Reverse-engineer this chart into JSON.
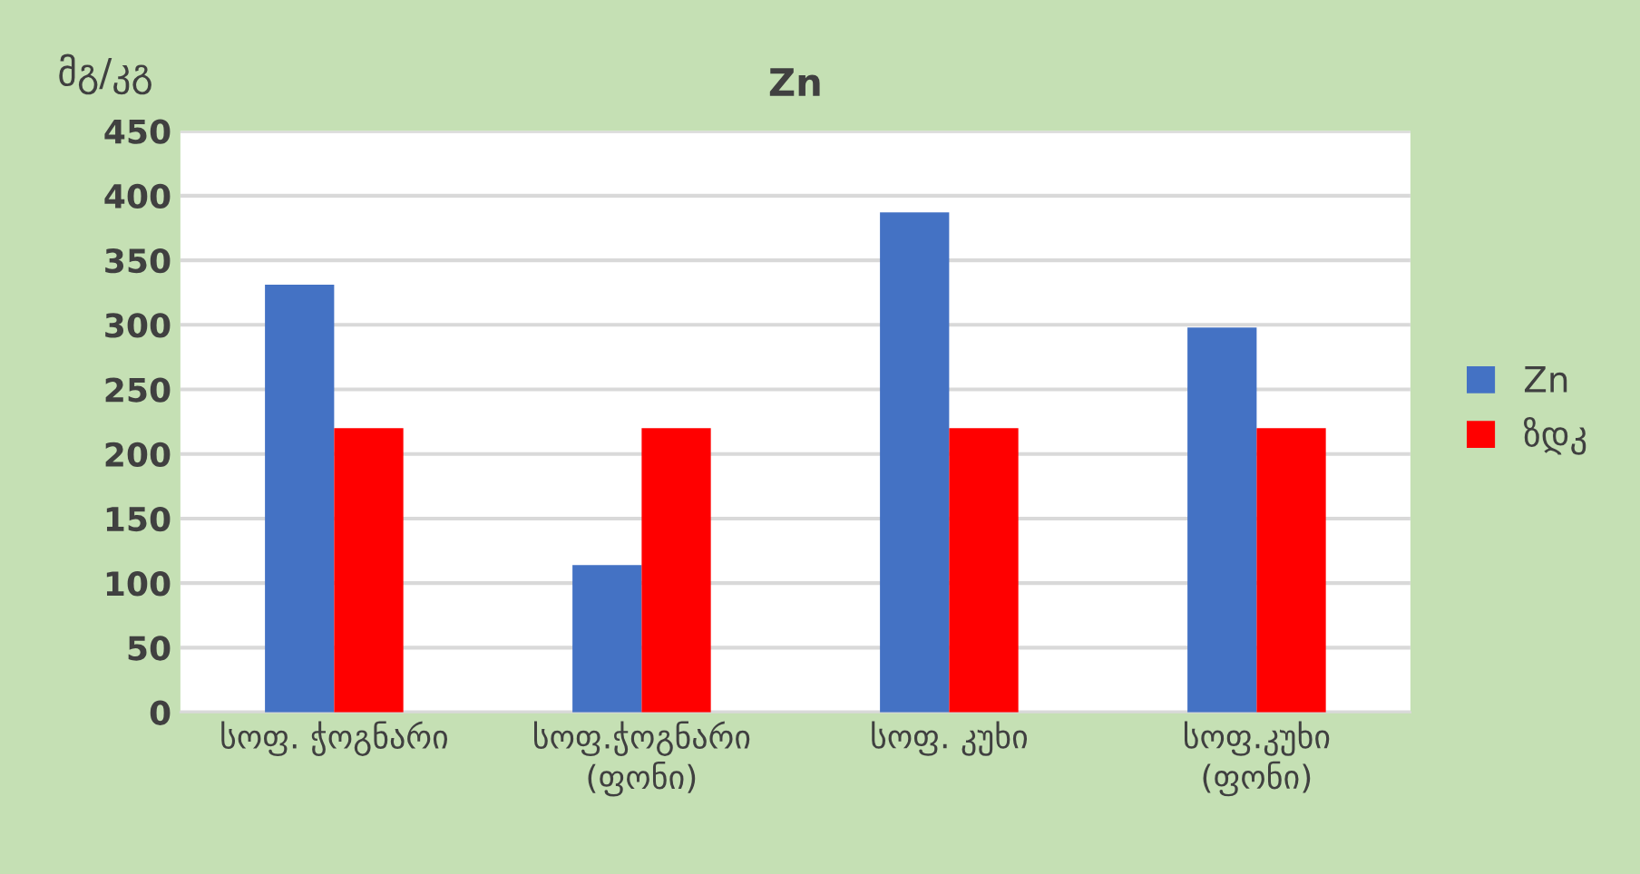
{
  "chart_data": {
    "type": "bar",
    "title": "Zn",
    "ylabel": "მგ/კგ",
    "categories": [
      "სოფ. ჭოგნარი",
      "სოფ.ჭოგნარი\n(ფონი)",
      "სოფ. კუხი",
      "სოფ.კუხი\n(ფონი)"
    ],
    "series": [
      {
        "name": "Zn",
        "color": "#4472c4",
        "values": [
          331,
          114,
          387,
          298
        ]
      },
      {
        "name": "ზდკ",
        "color": "#ff0000",
        "values": [
          220,
          220,
          220,
          220
        ]
      }
    ],
    "ylim": [
      0,
      450
    ],
    "yticks": [
      0,
      50,
      100,
      150,
      200,
      250,
      300,
      350,
      400,
      450
    ],
    "grid": "y",
    "legend": "right"
  }
}
